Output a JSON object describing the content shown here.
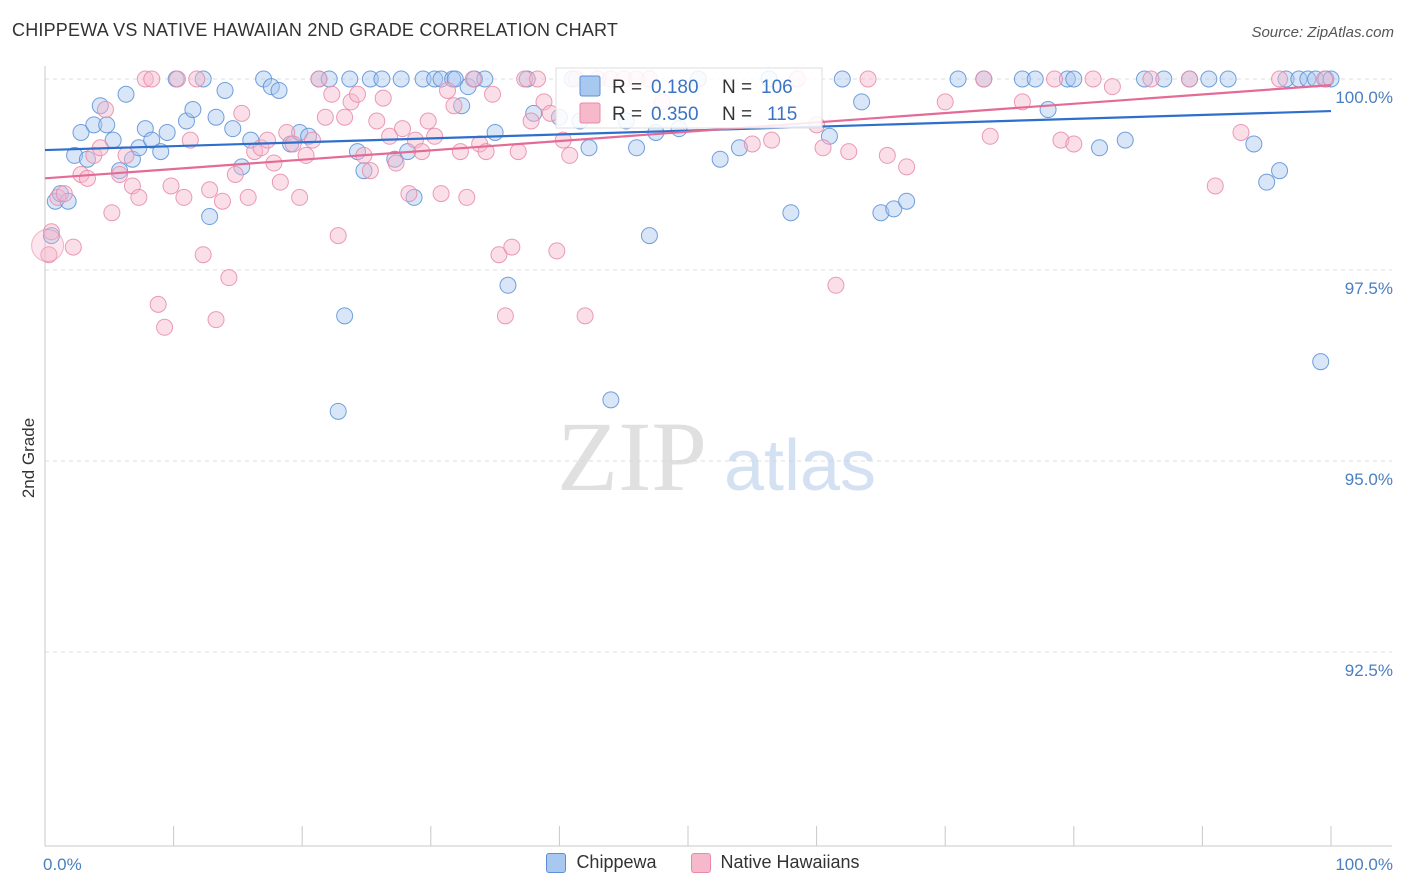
{
  "title": "CHIPPEWA VS NATIVE HAWAIIAN 2ND GRADE CORRELATION CHART",
  "source": "Source: ZipAtlas.com",
  "watermark": {
    "zip": "ZIP",
    "atlas": "atlas"
  },
  "colors": {
    "chippewa_fill": "#a8c8f0",
    "chippewa_stroke": "#5b8fd6",
    "chippewa_line": "#2f6fcc",
    "hawaiian_fill": "#f6b8cb",
    "hawaiian_stroke": "#e88aa8",
    "hawaiian_line": "#e46b96",
    "tick_text": "#4a7fc1",
    "grid": "#dddddd"
  },
  "legend": {
    "r_label": "R =",
    "n_label": "N =",
    "items": [
      {
        "name": "Chippewa",
        "r": "0.180",
        "n": "106"
      },
      {
        "name": "Native Hawaiians",
        "r": "0.350",
        "n": "115"
      }
    ]
  },
  "chart_data": {
    "type": "scatter",
    "ylabel": "2nd Grade",
    "xlabel": "",
    "xlim": [
      0,
      100
    ],
    "ylim": [
      90.5,
      100.2
    ],
    "y_ticks": [
      {
        "value": 100.0,
        "label": "100.0%"
      },
      {
        "value": 97.5,
        "label": "97.5%"
      },
      {
        "value": 95.0,
        "label": "95.0%"
      },
      {
        "value": 92.5,
        "label": "92.5%"
      }
    ],
    "x_tick_labels": [
      {
        "value": 0,
        "label": "0.0%"
      },
      {
        "value": 100,
        "label": "100.0%"
      }
    ],
    "grid": true,
    "series": [
      {
        "name": "Chippewa",
        "trend": {
          "x0": 0,
          "y0": 99.07,
          "x1": 100,
          "y1": 99.58
        },
        "points": [
          [
            0.5,
            97.95
          ],
          [
            0.8,
            98.4
          ],
          [
            1.2,
            98.5
          ],
          [
            1.8,
            98.4
          ],
          [
            2.3,
            99.0
          ],
          [
            2.8,
            99.3
          ],
          [
            3.3,
            98.95
          ],
          [
            3.8,
            99.4
          ],
          [
            4.3,
            99.65
          ],
          [
            4.8,
            99.4
          ],
          [
            5.3,
            99.2
          ],
          [
            5.8,
            98.8
          ],
          [
            6.3,
            99.8
          ],
          [
            6.8,
            98.95
          ],
          [
            7.3,
            99.1
          ],
          [
            7.8,
            99.35
          ],
          [
            8.3,
            99.2
          ],
          [
            9.0,
            99.05
          ],
          [
            9.5,
            99.3
          ],
          [
            10.2,
            100.0
          ],
          [
            11.0,
            99.45
          ],
          [
            11.5,
            99.6
          ],
          [
            12.3,
            100.0
          ],
          [
            12.8,
            98.2
          ],
          [
            13.3,
            99.5
          ],
          [
            14.0,
            99.85
          ],
          [
            14.6,
            99.35
          ],
          [
            15.3,
            98.85
          ],
          [
            16.0,
            99.2
          ],
          [
            17.0,
            100.0
          ],
          [
            17.6,
            99.9
          ],
          [
            18.2,
            99.85
          ],
          [
            19.1,
            99.15
          ],
          [
            19.8,
            99.3
          ],
          [
            20.5,
            99.25
          ],
          [
            21.3,
            100.0
          ],
          [
            22.1,
            100.0
          ],
          [
            22.8,
            95.65
          ],
          [
            23.3,
            96.9
          ],
          [
            23.7,
            100.0
          ],
          [
            24.3,
            99.05
          ],
          [
            24.8,
            98.8
          ],
          [
            25.3,
            100.0
          ],
          [
            26.2,
            100.0
          ],
          [
            27.2,
            98.95
          ],
          [
            27.7,
            100.0
          ],
          [
            28.2,
            99.05
          ],
          [
            28.7,
            98.45
          ],
          [
            29.4,
            100.0
          ],
          [
            30.3,
            100.0
          ],
          [
            30.8,
            100.0
          ],
          [
            31.7,
            100.0
          ],
          [
            31.9,
            100.0
          ],
          [
            32.4,
            99.65
          ],
          [
            32.9,
            99.9
          ],
          [
            33.4,
            100.0
          ],
          [
            34.2,
            100.0
          ],
          [
            35.0,
            99.3
          ],
          [
            36.0,
            97.3
          ],
          [
            37.5,
            100.0
          ],
          [
            38.0,
            99.55
          ],
          [
            40.0,
            99.5
          ],
          [
            41.0,
            100.0
          ],
          [
            41.6,
            99.45
          ],
          [
            42.3,
            99.1
          ],
          [
            44.0,
            95.8
          ],
          [
            45.2,
            99.45
          ],
          [
            46.0,
            99.1
          ],
          [
            47.0,
            97.95
          ],
          [
            47.5,
            99.3
          ],
          [
            49.3,
            99.35
          ],
          [
            50.8,
            100.0
          ],
          [
            52.5,
            98.95
          ],
          [
            54.0,
            99.1
          ],
          [
            56.3,
            100.0
          ],
          [
            58.0,
            98.25
          ],
          [
            61.0,
            99.25
          ],
          [
            62.0,
            100.0
          ],
          [
            63.5,
            99.7
          ],
          [
            65.0,
            98.25
          ],
          [
            66.0,
            98.3
          ],
          [
            67.0,
            98.4
          ],
          [
            71.0,
            100.0
          ],
          [
            73.0,
            100.0
          ],
          [
            76.0,
            100.0
          ],
          [
            77.0,
            100.0
          ],
          [
            78.0,
            99.6
          ],
          [
            79.5,
            100.0
          ],
          [
            80.0,
            100.0
          ],
          [
            82.0,
            99.1
          ],
          [
            84.0,
            99.2
          ],
          [
            85.5,
            100.0
          ],
          [
            87.0,
            100.0
          ],
          [
            89.0,
            100.0
          ],
          [
            90.5,
            100.0
          ],
          [
            92.0,
            100.0
          ],
          [
            94.0,
            99.15
          ],
          [
            95.0,
            98.65
          ],
          [
            96.0,
            98.8
          ],
          [
            96.5,
            100.0
          ],
          [
            97.5,
            100.0
          ],
          [
            98.2,
            100.0
          ],
          [
            98.8,
            100.0
          ],
          [
            99.2,
            96.3
          ],
          [
            99.6,
            100.0
          ],
          [
            100.0,
            100.0
          ]
        ]
      },
      {
        "name": "Native Hawaiians",
        "trend": {
          "x0": 0,
          "y0": 98.7,
          "x1": 100,
          "y1": 99.92
        },
        "points": [
          [
            0.3,
            97.7
          ],
          [
            0.5,
            98.0
          ],
          [
            1.0,
            98.45
          ],
          [
            1.5,
            98.5
          ],
          [
            2.2,
            97.8
          ],
          [
            2.8,
            98.75
          ],
          [
            3.3,
            98.7
          ],
          [
            3.8,
            99.0
          ],
          [
            4.3,
            99.1
          ],
          [
            4.7,
            99.6
          ],
          [
            5.2,
            98.25
          ],
          [
            5.8,
            98.75
          ],
          [
            6.3,
            99.0
          ],
          [
            6.8,
            98.6
          ],
          [
            7.3,
            98.45
          ],
          [
            7.8,
            100.0
          ],
          [
            8.3,
            100.0
          ],
          [
            8.8,
            97.05
          ],
          [
            9.3,
            96.75
          ],
          [
            9.8,
            98.6
          ],
          [
            10.3,
            100.0
          ],
          [
            10.8,
            98.45
          ],
          [
            11.3,
            99.2
          ],
          [
            11.8,
            100.0
          ],
          [
            12.3,
            97.7
          ],
          [
            12.8,
            98.55
          ],
          [
            13.3,
            96.85
          ],
          [
            13.8,
            98.4
          ],
          [
            14.3,
            97.4
          ],
          [
            14.8,
            98.75
          ],
          [
            15.3,
            99.55
          ],
          [
            15.8,
            98.45
          ],
          [
            16.3,
            99.05
          ],
          [
            16.8,
            99.1
          ],
          [
            17.3,
            99.2
          ],
          [
            17.8,
            98.9
          ],
          [
            18.3,
            98.65
          ],
          [
            18.8,
            99.3
          ],
          [
            19.3,
            99.15
          ],
          [
            19.8,
            98.45
          ],
          [
            20.3,
            99.0
          ],
          [
            20.8,
            99.2
          ],
          [
            21.3,
            100.0
          ],
          [
            21.8,
            99.5
          ],
          [
            22.3,
            99.8
          ],
          [
            22.8,
            97.95
          ],
          [
            23.3,
            99.5
          ],
          [
            23.8,
            99.7
          ],
          [
            24.3,
            99.8
          ],
          [
            24.8,
            99.0
          ],
          [
            25.3,
            98.8
          ],
          [
            25.8,
            99.45
          ],
          [
            26.3,
            99.75
          ],
          [
            26.8,
            99.25
          ],
          [
            27.3,
            98.9
          ],
          [
            27.8,
            99.35
          ],
          [
            28.3,
            98.5
          ],
          [
            28.8,
            99.2
          ],
          [
            29.3,
            99.05
          ],
          [
            29.8,
            99.45
          ],
          [
            30.3,
            99.25
          ],
          [
            30.8,
            98.5
          ],
          [
            31.3,
            99.85
          ],
          [
            31.8,
            99.65
          ],
          [
            32.3,
            99.05
          ],
          [
            32.8,
            98.45
          ],
          [
            33.3,
            100.0
          ],
          [
            33.8,
            99.15
          ],
          [
            34.3,
            99.05
          ],
          [
            34.8,
            99.8
          ],
          [
            35.3,
            97.7
          ],
          [
            35.8,
            96.9
          ],
          [
            36.3,
            97.8
          ],
          [
            36.8,
            99.05
          ],
          [
            37.3,
            100.0
          ],
          [
            37.8,
            99.45
          ],
          [
            38.3,
            100.0
          ],
          [
            38.8,
            99.7
          ],
          [
            39.3,
            99.55
          ],
          [
            39.8,
            97.75
          ],
          [
            40.3,
            99.2
          ],
          [
            40.8,
            99.0
          ],
          [
            41.3,
            100.0
          ],
          [
            42.0,
            96.9
          ],
          [
            43.0,
            100.0
          ],
          [
            44.0,
            100.0
          ],
          [
            45.0,
            100.0
          ],
          [
            46.0,
            100.0
          ],
          [
            47.0,
            100.0
          ],
          [
            48.0,
            99.7
          ],
          [
            55.0,
            99.15
          ],
          [
            56.5,
            99.2
          ],
          [
            58.5,
            100.0
          ],
          [
            60.0,
            99.4
          ],
          [
            60.5,
            99.1
          ],
          [
            61.5,
            97.3
          ],
          [
            62.5,
            99.05
          ],
          [
            64.0,
            100.0
          ],
          [
            65.5,
            99.0
          ],
          [
            67.0,
            98.85
          ],
          [
            70.0,
            99.7
          ],
          [
            73.0,
            100.0
          ],
          [
            73.5,
            99.25
          ],
          [
            76.0,
            99.7
          ],
          [
            78.5,
            100.0
          ],
          [
            79.0,
            99.2
          ],
          [
            80.0,
            99.15
          ],
          [
            81.5,
            100.0
          ],
          [
            83.0,
            99.9
          ],
          [
            86.0,
            100.0
          ],
          [
            89.0,
            100.0
          ],
          [
            91.0,
            98.6
          ],
          [
            93.0,
            99.3
          ],
          [
            96.0,
            100.0
          ],
          [
            99.5,
            100.0
          ]
        ]
      }
    ]
  }
}
